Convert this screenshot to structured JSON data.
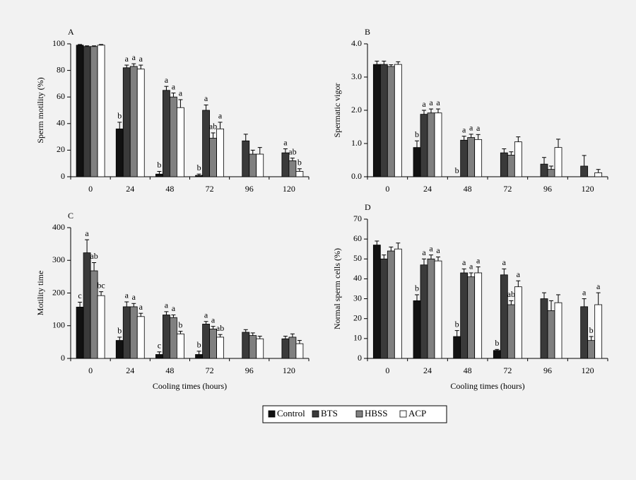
{
  "legend": [
    {
      "name": "Control",
      "color": "#111111"
    },
    {
      "name": "BTS",
      "color": "#3a3a3a"
    },
    {
      "name": "HBSS",
      "color": "#808080"
    },
    {
      "name": "ACP",
      "color": "#ffffff"
    }
  ],
  "chart_data": [
    {
      "type": "bar",
      "title": "A",
      "y_label": "Sperm motility (%)",
      "categories": [
        0,
        24,
        48,
        72,
        96,
        120
      ],
      "ylim": [
        0,
        100
      ],
      "yticks": [
        0,
        20,
        40,
        60,
        80,
        100
      ],
      "series": [
        {
          "values": [
            99,
            36,
            2,
            1,
            0,
            0
          ],
          "errors": [
            0.5,
            5,
            2,
            1,
            0,
            0
          ],
          "letters": [
            null,
            "b",
            "b",
            "b",
            null,
            null
          ]
        },
        {
          "values": [
            98,
            82,
            65,
            50,
            27,
            18
          ],
          "errors": [
            0.5,
            2,
            3,
            4,
            5,
            3
          ],
          "letters": [
            null,
            "a",
            "a",
            "a",
            null,
            "a"
          ]
        },
        {
          "values": [
            98,
            83,
            60,
            29,
            17,
            12
          ],
          "errors": [
            0.5,
            2,
            3,
            4,
            3,
            2
          ],
          "letters": [
            null,
            "a",
            "a",
            "ab",
            null,
            "ab"
          ]
        },
        {
          "values": [
            99,
            81,
            52,
            36,
            17,
            4
          ],
          "errors": [
            0.5,
            3,
            6,
            5,
            5,
            2
          ],
          "letters": [
            null,
            "a",
            "a",
            "a",
            null,
            "b"
          ]
        }
      ]
    },
    {
      "type": "bar",
      "title": "B",
      "y_label": "Spermatic vigor",
      "categories": [
        0,
        24,
        48,
        72,
        96,
        120
      ],
      "ylim": [
        0,
        4
      ],
      "yticks": [
        {
          "value": 0,
          "label": "0.0"
        },
        {
          "value": 1,
          "label": "1.0"
        },
        {
          "value": 2,
          "label": "2.0"
        },
        {
          "value": 3,
          "label": "3.0"
        },
        {
          "value": 4,
          "label": "4.0"
        }
      ],
      "series": [
        {
          "values": [
            3.38,
            0.88,
            0,
            0,
            0,
            0
          ],
          "errors": [
            0.1,
            0.2,
            0,
            0,
            0,
            0
          ],
          "letters": [
            null,
            "b",
            "b",
            null,
            null,
            null
          ]
        },
        {
          "values": [
            3.38,
            1.88,
            1.1,
            0.72,
            0.38,
            0.32
          ],
          "errors": [
            0.1,
            0.12,
            0.12,
            0.12,
            0.2,
            0.32
          ],
          "letters": [
            null,
            "a",
            "a",
            null,
            null,
            null
          ]
        },
        {
          "values": [
            3.32,
            1.92,
            1.18,
            0.65,
            0.22,
            0
          ],
          "errors": [
            0.05,
            0.12,
            0.1,
            0.1,
            0.1,
            0
          ],
          "letters": [
            null,
            "a",
            "a",
            null,
            null,
            null
          ]
        },
        {
          "values": [
            3.38,
            1.92,
            1.12,
            1.05,
            0.88,
            0.12
          ],
          "errors": [
            0.08,
            0.12,
            0.15,
            0.15,
            0.25,
            0.1
          ],
          "letters": [
            null,
            "a",
            "a",
            null,
            null,
            null
          ]
        }
      ]
    },
    {
      "type": "bar",
      "title": "C",
      "y_label": "Motility time",
      "x_label": "Cooling times (hours)",
      "categories": [
        0,
        24,
        48,
        72,
        96,
        120
      ],
      "ylim": [
        0,
        400
      ],
      "yticks": [
        0,
        100,
        200,
        300,
        400
      ],
      "series": [
        {
          "values": [
            157,
            55,
            12,
            12,
            0,
            0
          ],
          "errors": [
            15,
            10,
            8,
            10,
            0,
            0
          ],
          "letters": [
            "c",
            "b",
            "c",
            "b",
            null,
            null
          ]
        },
        {
          "values": [
            323,
            158,
            133,
            105,
            80,
            60
          ],
          "errors": [
            40,
            15,
            10,
            8,
            8,
            8
          ],
          "letters": [
            "a",
            "a",
            "a",
            "a",
            null,
            null
          ]
        },
        {
          "values": [
            268,
            158,
            125,
            90,
            70,
            65
          ],
          "errors": [
            25,
            10,
            8,
            8,
            8,
            10
          ],
          "letters": [
            "ab",
            "a",
            "a",
            "a",
            null,
            null
          ]
        },
        {
          "values": [
            192,
            128,
            75,
            65,
            60,
            45
          ],
          "errors": [
            12,
            10,
            8,
            8,
            8,
            10
          ],
          "letters": [
            "bc",
            "a",
            "b",
            "ab",
            null,
            null
          ]
        }
      ]
    },
    {
      "type": "bar",
      "title": "D",
      "y_label": "Normal sperm cells (%)",
      "x_label": "Cooling times (hours)",
      "categories": [
        0,
        24,
        48,
        72,
        96,
        120
      ],
      "ylim": [
        0,
        70
      ],
      "yticks": [
        0,
        10,
        20,
        30,
        40,
        50,
        60,
        70
      ],
      "series": [
        {
          "values": [
            57,
            29,
            11,
            4,
            0,
            0
          ],
          "errors": [
            2,
            3,
            3,
            0.5,
            0,
            0
          ],
          "letters": [
            null,
            "b",
            "b",
            "b",
            null,
            null
          ]
        },
        {
          "values": [
            50,
            47,
            43,
            42,
            30,
            26
          ],
          "errors": [
            2,
            3,
            2,
            3,
            3,
            4
          ],
          "letters": [
            null,
            "a",
            "a",
            "a",
            null,
            "a"
          ]
        },
        {
          "values": [
            54,
            50,
            41,
            27,
            24,
            9
          ],
          "errors": [
            2,
            2,
            2,
            2,
            5,
            2
          ],
          "letters": [
            null,
            "a",
            "a",
            "ab",
            null,
            "b"
          ]
        },
        {
          "values": [
            55,
            49,
            43,
            36,
            28,
            27
          ],
          "errors": [
            3,
            2,
            3,
            3,
            4,
            6
          ],
          "letters": [
            null,
            "a",
            "a",
            "a",
            null,
            "a"
          ]
        }
      ]
    }
  ]
}
